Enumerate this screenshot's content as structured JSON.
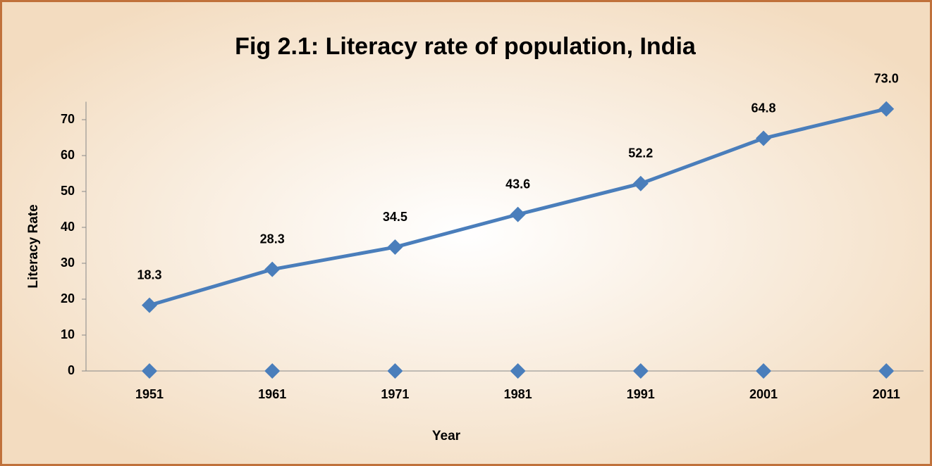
{
  "chart_data": {
    "type": "line",
    "title": "Fig 2.1: Literacy rate of population, India",
    "x_label": "Year",
    "y_label": "Literacy Rate",
    "categories": [
      "1951",
      "1961",
      "1971",
      "1981",
      "1991",
      "2001",
      "2011"
    ],
    "series": [
      {
        "color": "#4a7ebb",
        "line": true,
        "values": [
          18.3,
          28.3,
          34.5,
          43.6,
          52.2,
          64.8,
          73.0
        ],
        "value_labels": [
          "18.3",
          "28.3",
          "34.5",
          "43.6",
          "52.2",
          "64.8",
          "73.0"
        ]
      },
      {
        "color": "#4a7ebb",
        "line": false,
        "values": [
          0,
          0,
          0,
          0,
          0,
          0,
          0
        ]
      }
    ],
    "ylim": [
      0,
      75
    ],
    "yticks": [
      0,
      10,
      20,
      30,
      40,
      50,
      60,
      70
    ],
    "grid": false
  }
}
